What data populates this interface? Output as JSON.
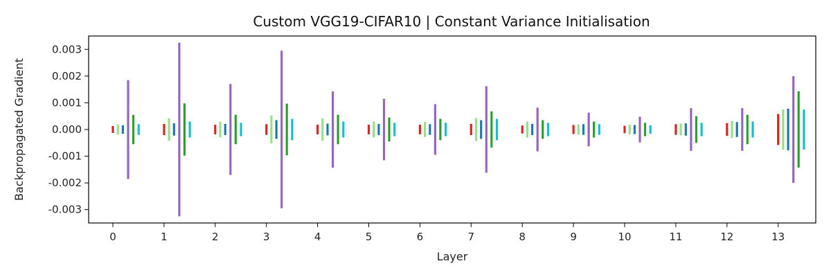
{
  "chart_data": {
    "type": "error-bar",
    "title": "Custom VGG19-CIFAR10 | Constant Variance Initialisation",
    "xlabel": "Layer",
    "ylabel": "Backpropagated Gradient",
    "categories": [
      "0",
      "1",
      "2",
      "3",
      "4",
      "5",
      "6",
      "7",
      "8",
      "9",
      "10",
      "11",
      "12",
      "13"
    ],
    "ylim": [
      -0.0035,
      0.0035
    ],
    "yticks": [
      "-0.003",
      "-0.002",
      "-0.001",
      "0.000",
      "0.001",
      "0.002",
      "0.003"
    ],
    "ytick_values": [
      -0.003,
      -0.002,
      -0.001,
      0.0,
      0.001,
      0.002,
      0.003
    ],
    "grid": false,
    "series": [
      {
        "color": "#d62728",
        "values": [
          0.00013,
          0.00021,
          0.00018,
          0.0002,
          0.00018,
          0.00018,
          0.00018,
          0.00021,
          0.00015,
          0.00017,
          0.00014,
          0.0002,
          0.00024,
          0.00058
        ]
      },
      {
        "color": "#98df8a",
        "values": [
          0.00019,
          0.00042,
          0.00029,
          0.00052,
          0.00042,
          0.0003,
          0.00028,
          0.00043,
          0.0003,
          0.00019,
          0.00018,
          0.00022,
          0.00032,
          0.00075
        ]
      },
      {
        "color": "#1f77b4",
        "values": [
          0.00016,
          0.00023,
          0.00021,
          0.00035,
          0.00022,
          0.00021,
          0.0002,
          0.00035,
          0.00021,
          0.0002,
          0.00017,
          0.00023,
          0.00028,
          0.00078
        ]
      },
      {
        "color": "#9467bd",
        "values": [
          0.00185,
          0.00325,
          0.0017,
          0.00295,
          0.00143,
          0.00115,
          0.00095,
          0.00162,
          0.00082,
          0.00063,
          0.00048,
          0.0008,
          0.0008,
          0.002
        ]
      },
      {
        "color": "#2ca02c",
        "values": [
          0.00055,
          0.00098,
          0.00055,
          0.00097,
          0.00055,
          0.00045,
          0.0004,
          0.00068,
          0.00035,
          0.0003,
          0.00025,
          0.0005,
          0.00055,
          0.00143
        ]
      },
      {
        "color": "#17becf",
        "values": [
          0.0002,
          0.0003,
          0.00025,
          0.0004,
          0.0003,
          0.00025,
          0.00025,
          0.0004,
          0.00025,
          0.0002,
          0.00016,
          0.00025,
          0.0003,
          0.00075
        ]
      }
    ]
  }
}
